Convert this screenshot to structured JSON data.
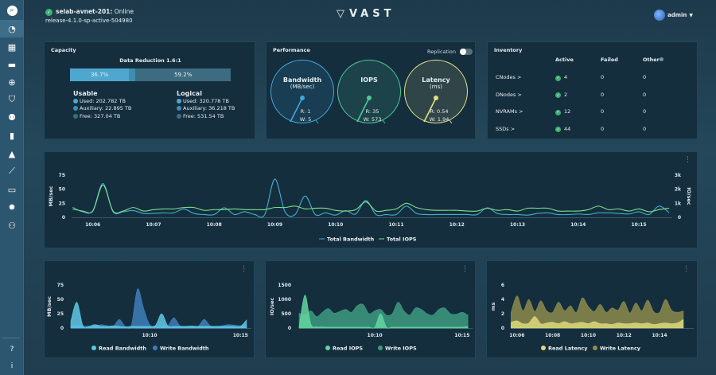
{
  "header": {
    "cluster_name": "selab-avnet-201:",
    "status": "Online",
    "release": "release-4.1.0-sp-active-504980",
    "logo": "VAST",
    "user": "admin"
  },
  "sidebar": {
    "items": [
      {
        "icon": "search-icon",
        "glyph": "⌕"
      },
      {
        "icon": "dashboard-icon",
        "glyph": "◔",
        "active": true
      },
      {
        "icon": "server-icon",
        "glyph": "▦"
      },
      {
        "icon": "folder-icon",
        "glyph": "▬"
      },
      {
        "icon": "globe-icon",
        "glyph": "⊕"
      },
      {
        "icon": "shield-icon",
        "glyph": "⛉"
      },
      {
        "icon": "user-manage-icon",
        "glyph": "⚉"
      },
      {
        "icon": "analytics-icon",
        "glyph": "▮"
      },
      {
        "icon": "alert-icon",
        "glyph": "▲"
      },
      {
        "icon": "trend-icon",
        "glyph": "⟋"
      },
      {
        "icon": "hardware-icon",
        "glyph": "▭"
      },
      {
        "icon": "settings-icon",
        "glyph": "✹"
      },
      {
        "icon": "user-settings-icon",
        "glyph": "⚇"
      }
    ],
    "bottom": [
      {
        "icon": "help-icon",
        "glyph": "?"
      },
      {
        "icon": "info-icon",
        "glyph": "i"
      }
    ]
  },
  "capacity": {
    "title": "Capacity",
    "data_reduction": "Data Reduction 1.6:1",
    "bar": {
      "used_pct": 36.7,
      "aux_pct": 4.1,
      "used_label": "36.7%",
      "free_label": "59.2%"
    },
    "usable": {
      "title": "Usable",
      "used": "Used: 202.782 TB",
      "auxiliary": "Auxiliary: 22.895 TB",
      "free": "Free: 327.04 TB"
    },
    "logical": {
      "title": "Logical",
      "used": "Used: 320.778 TB",
      "auxiliary": "Auxiliary: 36.218 TB",
      "free": "Free: 531.54 TB"
    },
    "colors": {
      "used": "#4fa7cf",
      "auxiliary": "#3f8eb0",
      "free": "#3d6c80"
    }
  },
  "performance": {
    "title": "Performance",
    "replication_label": "Replication",
    "replication_on": false,
    "gauges": [
      {
        "title": "Bandwidth",
        "unit": "(MB/sec)",
        "read": "R: 1",
        "write": "W: 5",
        "color": "#3fa8d8"
      },
      {
        "title": "IOPS",
        "unit": "",
        "read": "R: 35",
        "write": "W: 573",
        "color": "#4fc79a"
      },
      {
        "title": "Latency",
        "unit": "(ms)",
        "read": "R: 0.54",
        "write": "W: 1.94",
        "color": "#e2df8a"
      }
    ]
  },
  "inventory": {
    "title": "Inventory",
    "columns": [
      "Active",
      "Failed",
      "Other"
    ],
    "rows": [
      {
        "name": "CNodes >",
        "active": "4",
        "failed": "0",
        "other": "0"
      },
      {
        "name": "DNodes >",
        "active": "2",
        "failed": "0",
        "other": "0"
      },
      {
        "name": "NVRAMs >",
        "active": "12",
        "failed": "0",
        "other": "0"
      },
      {
        "name": "SSDs >",
        "active": "44",
        "failed": "0",
        "other": "0"
      }
    ]
  },
  "chart_data": [
    {
      "type": "line",
      "ylabel": "MB/sec",
      "y2label": "IO/sec",
      "ylim": [
        0,
        75
      ],
      "y2lim": [
        0,
        3000
      ],
      "yticks": [
        "0",
        "25",
        "50",
        "75"
      ],
      "y2ticks": [
        "0",
        "1k",
        "2k",
        "3k"
      ],
      "xticks": [
        "10:06",
        "10:07",
        "10:08",
        "10:09",
        "10:10",
        "10:11",
        "10:12",
        "10:13",
        "10:14",
        "10:15"
      ],
      "legend": "bottom",
      "x": [
        "10:05:40",
        "10:05:50",
        "10:06:00",
        "10:06:10",
        "10:06:20",
        "10:06:30",
        "10:06:40",
        "10:06:50",
        "10:07:00",
        "10:07:10",
        "10:07:20",
        "10:07:30",
        "10:07:40",
        "10:07:50",
        "10:08:00",
        "10:08:10",
        "10:08:20",
        "10:08:30",
        "10:08:40",
        "10:08:50",
        "10:09:00",
        "10:09:10",
        "10:09:20",
        "10:09:30",
        "10:09:40",
        "10:09:50",
        "10:10:00",
        "10:10:10",
        "10:10:20",
        "10:10:30",
        "10:10:40",
        "10:10:50",
        "10:11:00",
        "10:11:10",
        "10:11:20",
        "10:11:30",
        "10:11:40",
        "10:11:50",
        "10:12:00",
        "10:12:10",
        "10:12:20",
        "10:12:30",
        "10:12:40",
        "10:12:50",
        "10:13:00",
        "10:13:10",
        "10:13:20",
        "10:13:30",
        "10:13:40",
        "10:13:50",
        "10:14:00",
        "10:14:10",
        "10:14:20",
        "10:14:30",
        "10:14:40",
        "10:14:50",
        "10:15:00",
        "10:15:10",
        "10:15:20",
        "10:15:30"
      ],
      "series": [
        {
          "name": "Total Bandwidth",
          "axis": "left",
          "color": "#3fb0d0",
          "values": [
            18,
            10,
            12,
            60,
            10,
            10,
            12,
            7,
            7,
            8,
            8,
            15,
            7,
            5,
            5,
            17,
            5,
            10,
            5,
            5,
            68,
            10,
            5,
            38,
            5,
            8,
            4,
            12,
            6,
            30,
            5,
            5,
            5,
            20,
            7,
            5,
            5,
            5,
            5,
            5,
            5,
            17,
            7,
            5,
            5,
            4,
            7,
            8,
            5,
            5,
            6,
            5,
            8,
            8,
            7,
            6,
            10,
            5,
            20,
            8
          ]
        },
        {
          "name": "Total IOPS",
          "axis": "right",
          "color": "#7ee08a",
          "values": [
            600,
            450,
            450,
            2300,
            450,
            450,
            700,
            450,
            550,
            600,
            600,
            700,
            700,
            500,
            550,
            550,
            600,
            550,
            550,
            550,
            700,
            700,
            800,
            600,
            650,
            650,
            500,
            450,
            550,
            1100,
            450,
            500,
            600,
            1000,
            700,
            550,
            500,
            500,
            500,
            450,
            450,
            650,
            500,
            550,
            450,
            650,
            650,
            650,
            450,
            450,
            450,
            550,
            800,
            550,
            600,
            450,
            600,
            400,
            550,
            650
          ]
        }
      ]
    },
    {
      "type": "area",
      "ylabel": "MB/sec",
      "ylim": [
        0,
        75
      ],
      "yticks": [
        "0",
        "25",
        "50",
        "75"
      ],
      "xticks": [
        "10:10",
        "10:15"
      ],
      "legend": "bottom",
      "x": [
        "10:05:40",
        "10:06:00",
        "10:06:20",
        "10:06:40",
        "10:07:00",
        "10:07:20",
        "10:07:40",
        "10:08:00",
        "10:08:20",
        "10:08:40",
        "10:09:00",
        "10:09:20",
        "10:09:40",
        "10:10:00",
        "10:10:20",
        "10:10:40",
        "10:11:00",
        "10:11:20",
        "10:11:40",
        "10:12:00",
        "10:12:20",
        "10:12:40",
        "10:13:00",
        "10:13:20",
        "10:13:40",
        "10:14:00",
        "10:14:20",
        "10:14:40",
        "10:15:00",
        "10:15:20"
      ],
      "series": [
        {
          "name": "Write Bandwidth",
          "color": "#3d7fb8",
          "values": [
            4,
            5,
            4,
            3,
            3,
            6,
            4,
            3,
            15,
            3,
            5,
            68,
            35,
            6,
            3,
            4,
            4,
            18,
            4,
            3,
            4,
            3,
            15,
            4,
            3,
            4,
            6,
            5,
            4,
            4
          ]
        },
        {
          "name": "Read Bandwidth",
          "color": "#5ec8e8",
          "values": [
            12,
            45,
            4,
            3,
            6,
            3,
            3,
            4,
            3,
            2,
            3,
            3,
            3,
            3,
            5,
            25,
            4,
            3,
            3,
            3,
            3,
            3,
            3,
            3,
            3,
            3,
            3,
            3,
            3,
            14
          ]
        }
      ]
    },
    {
      "type": "area",
      "ylabel": "IO/sec",
      "ylim": [
        0,
        1500
      ],
      "yticks": [
        "0",
        "500",
        "1000",
        "1500"
      ],
      "xticks": [
        "10:10",
        "10:15"
      ],
      "legend": "bottom",
      "x": [
        "10:05:40",
        "10:06:00",
        "10:06:20",
        "10:06:40",
        "10:07:00",
        "10:07:20",
        "10:07:40",
        "10:08:00",
        "10:08:20",
        "10:08:40",
        "10:09:00",
        "10:09:20",
        "10:09:40",
        "10:10:00",
        "10:10:20",
        "10:10:40",
        "10:11:00",
        "10:11:20",
        "10:11:40",
        "10:12:00",
        "10:12:20",
        "10:12:40",
        "10:13:00",
        "10:13:20",
        "10:13:40",
        "10:14:00",
        "10:14:20",
        "10:14:40",
        "10:15:00",
        "10:15:20"
      ],
      "series": [
        {
          "name": "Write IOPS",
          "color": "#3d9b80",
          "values": [
            520,
            450,
            600,
            400,
            550,
            680,
            520,
            580,
            650,
            550,
            780,
            820,
            500,
            600,
            650,
            450,
            500,
            900,
            600,
            450,
            700,
            650,
            500,
            450,
            650,
            700,
            500,
            480,
            550,
            450
          ]
        },
        {
          "name": "Read IOPS",
          "color": "#62d6a0",
          "values": [
            50,
            1150,
            150,
            40,
            40,
            30,
            30,
            30,
            30,
            30,
            30,
            30,
            30,
            30,
            500,
            30,
            30,
            30,
            30,
            30,
            30,
            30,
            30,
            30,
            30,
            30,
            30,
            30,
            30,
            50
          ]
        }
      ]
    },
    {
      "type": "area",
      "ylabel": "ms",
      "ylim": [
        0,
        6
      ],
      "yticks": [
        "0",
        "2",
        "4",
        "6"
      ],
      "xticks": [
        "10:06",
        "10:08",
        "10:10",
        "10:12",
        "10:14"
      ],
      "legend": "bottom",
      "x": [
        "10:05:40",
        "10:06:00",
        "10:06:20",
        "10:06:40",
        "10:07:00",
        "10:07:20",
        "10:07:40",
        "10:08:00",
        "10:08:20",
        "10:08:40",
        "10:09:00",
        "10:09:20",
        "10:09:40",
        "10:10:00",
        "10:10:20",
        "10:10:40",
        "10:11:00",
        "10:11:20",
        "10:11:40",
        "10:12:00",
        "10:12:20",
        "10:12:40",
        "10:13:00",
        "10:13:20",
        "10:13:40",
        "10:14:00",
        "10:14:20",
        "10:14:40",
        "10:15:00",
        "10:15:20"
      ],
      "series": [
        {
          "name": "Write Latency",
          "color": "#8c8b4c",
          "values": [
            2.2,
            4.5,
            2.4,
            4.0,
            2.3,
            3.8,
            2.4,
            2.2,
            3.6,
            2.4,
            3.1,
            2.2,
            4.2,
            3.0,
            2.3,
            3.3,
            2.2,
            2.8,
            2.5,
            3.7,
            2.1,
            3.5,
            2.4,
            3.9,
            2.3,
            2.2,
            4.0,
            2.5,
            2.2,
            2.4
          ]
        },
        {
          "name": "Read Latency",
          "color": "#dcd97c",
          "values": [
            0.8,
            1.0,
            0.6,
            0.7,
            1.6,
            0.6,
            0.7,
            0.8,
            0.6,
            0.9,
            0.6,
            0.7,
            0.8,
            0.6,
            0.9,
            0.6,
            0.6,
            0.5,
            0.7,
            0.6,
            0.6,
            0.7,
            0.6,
            0.7,
            0.5,
            0.6,
            0.7,
            0.6,
            0.7,
            1.2
          ]
        }
      ]
    }
  ]
}
